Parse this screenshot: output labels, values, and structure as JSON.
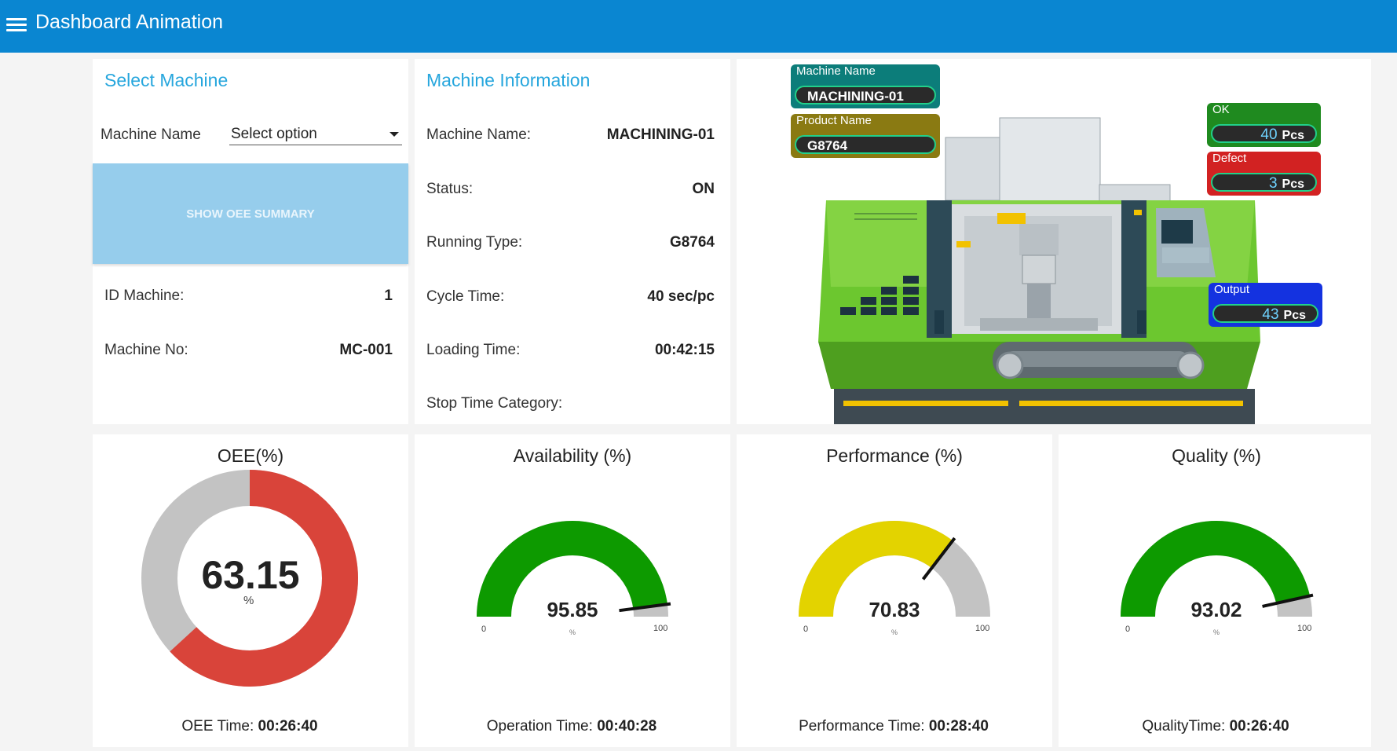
{
  "header": {
    "title": "Dashboard Animation",
    "menu_icon": "hamburger-menu-icon"
  },
  "select_machine": {
    "title": "Select Machine",
    "machine_name_label": "Machine Name",
    "machine_name_value": "Select option",
    "show_oee_button": "SHOW OEE SUMMARY",
    "id_machine_label": "ID Machine:",
    "id_machine_value": "1",
    "machine_no_label": "Machine No:",
    "machine_no_value": "MC-001"
  },
  "machine_info": {
    "title": "Machine Information",
    "rows": [
      {
        "label": "Machine Name:",
        "value": "MACHINING-01"
      },
      {
        "label": "Status:",
        "value": "ON"
      },
      {
        "label": "Running Type:",
        "value": "G8764"
      },
      {
        "label": "Cycle Time:",
        "value": "40 sec/pc"
      },
      {
        "label": "Loading Time:",
        "value": "00:42:15"
      },
      {
        "label": "Stop Time Category:",
        "value": ""
      }
    ]
  },
  "machine_visual": {
    "machine_name_label": "Machine Name",
    "machine_name_value": "MACHINING-01",
    "product_name_label": "Product Name",
    "product_name_value": "G8764",
    "ok_label": "OK",
    "ok_value": "40",
    "ok_unit": "Pcs",
    "defect_label": "Defect",
    "defect_value": "3",
    "defect_unit": "Pcs",
    "output_label": "Output",
    "output_value": "43",
    "output_unit": "Pcs"
  },
  "gauges": {
    "oee": {
      "title": "OEE(%)",
      "value": "63.15",
      "unit": "%",
      "time_label": "OEE Time:",
      "time_value": "00:26:40",
      "fill_color": "#d9443a"
    },
    "availability": {
      "title": "Availability (%)",
      "value": "95.85",
      "unit": "%",
      "min": "0",
      "max": "100",
      "time_label": "Operation Time:",
      "time_value": "00:40:28",
      "fill_color": "#0d9a00"
    },
    "performance": {
      "title": "Performance (%)",
      "value": "70.83",
      "unit": "%",
      "min": "0",
      "max": "100",
      "time_label": "Performance Time:",
      "time_value": "00:28:40",
      "fill_color": "#e3d300"
    },
    "quality": {
      "title": "Quality (%)",
      "value": "93.02",
      "unit": "%",
      "min": "0",
      "max": "100",
      "time_label": "QualityTime:",
      "time_value": "00:26:40",
      "fill_color": "#0d9a00"
    }
  }
}
